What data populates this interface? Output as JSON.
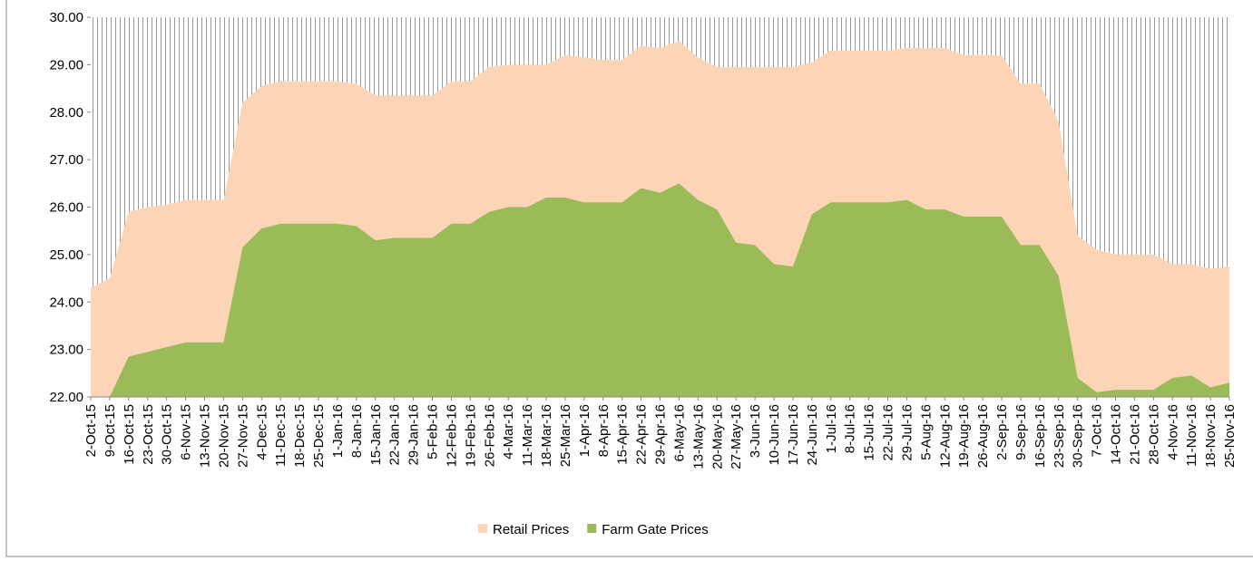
{
  "chart_data": {
    "type": "area",
    "categories": [
      "2-Oct-15",
      "9-Oct-15",
      "16-Oct-15",
      "23-Oct-15",
      "30-Oct-15",
      "6-Nov-15",
      "13-Nov-15",
      "20-Nov-15",
      "27-Nov-15",
      "4-Dec-15",
      "11-Dec-15",
      "18-Dec-15",
      "25-Dec-15",
      "1-Jan-16",
      "8-Jan-16",
      "15-Jan-16",
      "22-Jan-16",
      "29-Jan-16",
      "5-Feb-16",
      "12-Feb-16",
      "19-Feb-16",
      "26-Feb-16",
      "4-Mar-16",
      "11-Mar-16",
      "18-Mar-16",
      "25-Mar-16",
      "1-Apr-16",
      "8-Apr-16",
      "15-Apr-16",
      "22-Apr-16",
      "29-Apr-16",
      "6-May-16",
      "13-May-16",
      "20-May-16",
      "27-May-16",
      "3-Jun-16",
      "10-Jun-16",
      "17-Jun-16",
      "24-Jun-16",
      "1-Jul-16",
      "8-Jul-16",
      "15-Jul-16",
      "22-Jul-16",
      "29-Jul-16",
      "5-Aug-16",
      "12-Aug-16",
      "19-Aug-16",
      "26-Aug-16",
      "2-Sep-16",
      "9-Sep-16",
      "16-Sep-16",
      "23-Sep-16",
      "30-Sep-16",
      "7-Oct-16",
      "14-Oct-16",
      "21-Oct-16",
      "28-Oct-16",
      "4-Nov-16",
      "11-Nov-16",
      "18-Nov-16",
      "25-Nov-16"
    ],
    "series": [
      {
        "name": "Retail Prices",
        "color": "#fbd5b5",
        "values": [
          24.3,
          24.5,
          25.9,
          26.0,
          26.05,
          26.15,
          26.15,
          26.15,
          28.2,
          28.55,
          28.65,
          28.65,
          28.65,
          28.65,
          28.6,
          28.35,
          28.35,
          28.35,
          28.35,
          28.65,
          28.65,
          28.95,
          29.0,
          29.0,
          29.0,
          29.2,
          29.15,
          29.1,
          29.1,
          29.4,
          29.35,
          29.5,
          29.15,
          28.95,
          28.95,
          28.95,
          28.95,
          28.95,
          29.05,
          29.3,
          29.3,
          29.3,
          29.3,
          29.35,
          29.35,
          29.35,
          29.2,
          29.2,
          29.2,
          28.6,
          28.6,
          27.8,
          25.4,
          25.1,
          25.0,
          25.0,
          25.0,
          24.8,
          24.8,
          24.7,
          24.75
        ]
      },
      {
        "name": "Farm Gate Prices",
        "color": "#9bbb59",
        "values": [
          22.0,
          22.0,
          22.85,
          22.95,
          23.05,
          23.15,
          23.15,
          23.15,
          25.15,
          25.55,
          25.65,
          25.65,
          25.65,
          25.65,
          25.6,
          25.3,
          25.35,
          25.35,
          25.35,
          25.65,
          25.65,
          25.9,
          26.0,
          26.0,
          26.2,
          26.2,
          26.1,
          26.1,
          26.1,
          26.4,
          26.3,
          26.5,
          26.15,
          25.95,
          25.25,
          25.2,
          24.8,
          24.75,
          25.85,
          26.1,
          26.1,
          26.1,
          26.1,
          26.15,
          25.95,
          25.95,
          25.8,
          25.8,
          25.8,
          25.2,
          25.2,
          24.55,
          22.4,
          22.1,
          22.15,
          22.15,
          22.15,
          22.4,
          22.45,
          22.2,
          22.3
        ]
      }
    ],
    "ylim": [
      22,
      30
    ],
    "yticks": [
      {
        "value": 22,
        "label": "22.00"
      },
      {
        "value": 23,
        "label": "23.00"
      },
      {
        "value": 24,
        "label": "24.00"
      },
      {
        "value": 25,
        "label": "25.00"
      },
      {
        "value": 26,
        "label": "26.00"
      },
      {
        "value": 27,
        "label": "27.00"
      },
      {
        "value": 28,
        "label": "28.00"
      },
      {
        "value": 29,
        "label": "29.00"
      },
      {
        "value": 30,
        "label": "30.00"
      }
    ],
    "legend": "bottom"
  }
}
